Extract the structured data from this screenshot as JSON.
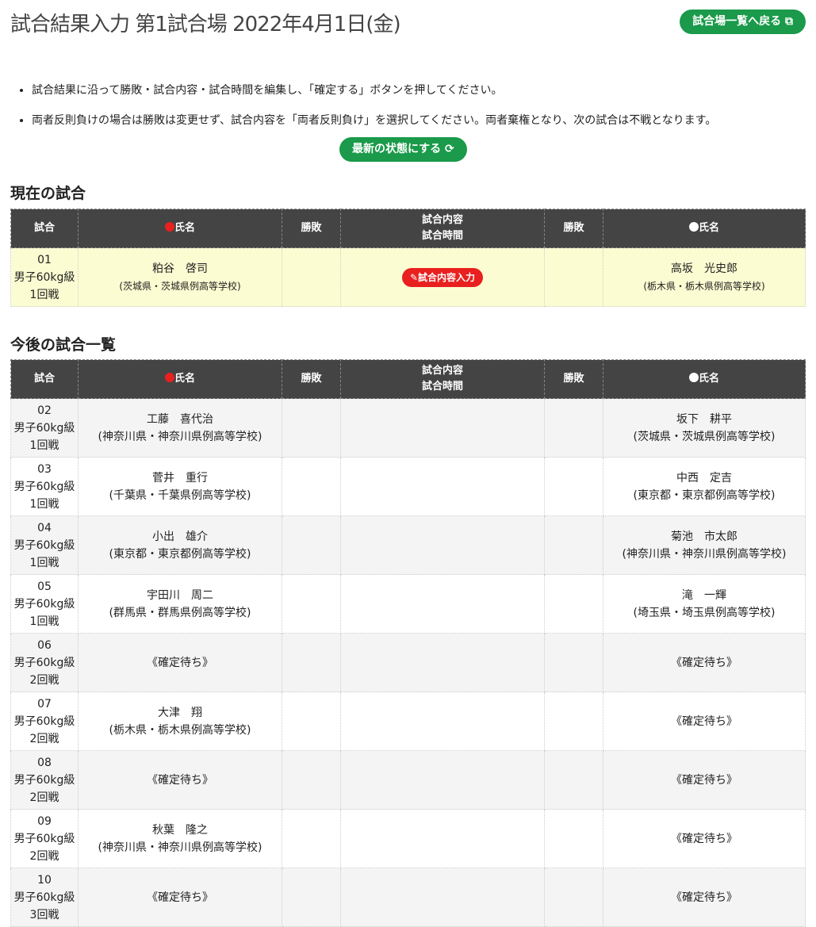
{
  "title": "試合結果入力 第1試合場 2022年4月1日(金)",
  "back_button": "試合場一覧へ戻る",
  "instructions": [
    "試合結果に沿って勝敗・試合内容・試合時間を編集し、「確定する」ボタンを押してください。",
    "両者反則負けの場合は勝敗は変更せず、試合内容を「両者反則負け」を選択してください。両者棄権となり、次の試合は不戦となります。"
  ],
  "refresh_button": "最新の状態にする",
  "headers": {
    "match": "試合",
    "red_name": "氏名",
    "result": "勝敗",
    "content": "試合内容",
    "time": "試合時間",
    "white_name": "氏名"
  },
  "colors": {
    "red": "#e8201f",
    "green": "#1a9a4a",
    "header": "#444444",
    "current_row": "#fcfcd2"
  },
  "current": {
    "heading": "現在の試合",
    "match": {
      "no": "01",
      "class": "男子60kg級",
      "round": "1回戦",
      "red": {
        "name": "粕谷　啓司",
        "affil": "(茨城県・茨城県例高等学校)"
      },
      "content_button": "試合内容入力",
      "white": {
        "name": "高坂　光史郎",
        "affil": "(栃木県・栃木県例高等学校)"
      }
    }
  },
  "upcoming": {
    "heading": "今後の試合一覧",
    "matches": [
      {
        "no": "02",
        "class": "男子60kg級",
        "round": "1回戦",
        "red": {
          "name": "工藤　喜代治",
          "affil": "(神奈川県・神奈川県例高等学校)"
        },
        "white": {
          "name": "坂下　耕平",
          "affil": "(茨城県・茨城県例高等学校)"
        }
      },
      {
        "no": "03",
        "class": "男子60kg級",
        "round": "1回戦",
        "red": {
          "name": "菅井　重行",
          "affil": "(千葉県・千葉県例高等学校)"
        },
        "white": {
          "name": "中西　定吉",
          "affil": "(東京都・東京都例高等学校)"
        }
      },
      {
        "no": "04",
        "class": "男子60kg級",
        "round": "1回戦",
        "red": {
          "name": "小出　雄介",
          "affil": "(東京都・東京都例高等学校)"
        },
        "white": {
          "name": "菊池　市太郎",
          "affil": "(神奈川県・神奈川県例高等学校)"
        }
      },
      {
        "no": "05",
        "class": "男子60kg級",
        "round": "1回戦",
        "red": {
          "name": "宇田川　周二",
          "affil": "(群馬県・群馬県例高等学校)"
        },
        "white": {
          "name": "滝　一輝",
          "affil": "(埼玉県・埼玉県例高等学校)"
        }
      },
      {
        "no": "06",
        "class": "男子60kg級",
        "round": "2回戦",
        "red": {
          "name": "《確定待ち》",
          "affil": ""
        },
        "white": {
          "name": "《確定待ち》",
          "affil": ""
        }
      },
      {
        "no": "07",
        "class": "男子60kg級",
        "round": "2回戦",
        "red": {
          "name": "大津　翔",
          "affil": "(栃木県・栃木県例高等学校)"
        },
        "white": {
          "name": "《確定待ち》",
          "affil": ""
        }
      },
      {
        "no": "08",
        "class": "男子60kg級",
        "round": "2回戦",
        "red": {
          "name": "《確定待ち》",
          "affil": ""
        },
        "white": {
          "name": "《確定待ち》",
          "affil": ""
        }
      },
      {
        "no": "09",
        "class": "男子60kg級",
        "round": "2回戦",
        "red": {
          "name": "秋葉　隆之",
          "affil": "(神奈川県・神奈川県例高等学校)"
        },
        "white": {
          "name": "《確定待ち》",
          "affil": ""
        }
      },
      {
        "no": "10",
        "class": "男子60kg級",
        "round": "3回戦",
        "red": {
          "name": "《確定待ち》",
          "affil": ""
        },
        "white": {
          "name": "《確定待ち》",
          "affil": ""
        }
      }
    ]
  }
}
